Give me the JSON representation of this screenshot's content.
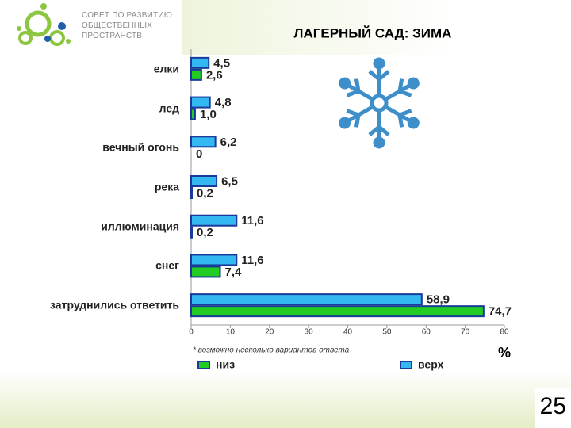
{
  "logo": {
    "lines": [
      "СОВЕТ ПО РАЗВИТИЮ",
      "ОБЩЕСТВЕННЫХ",
      "ПРОСТРАНСТВ"
    ]
  },
  "page_number": "25",
  "chart_data": {
    "type": "bar",
    "orientation": "horizontal",
    "title": "ЛАГЕРНЫЙ САД: ЗИМА",
    "categories": [
      "елки",
      "лед",
      "вечный огонь",
      "река",
      "иллюминация",
      "снег",
      "затруднились ответить"
    ],
    "series": [
      {
        "name": "верх",
        "color": "#33b8f2",
        "values": [
          4.5,
          4.8,
          6.2,
          6.5,
          11.6,
          11.6,
          58.9
        ],
        "value_labels": [
          "4,5",
          "4,8",
          "6,2",
          "6,5",
          "11,6",
          "11,6",
          "58,9"
        ]
      },
      {
        "name": "низ",
        "color": "#22cc22",
        "values": [
          2.6,
          1.0,
          0,
          0.2,
          0.2,
          7.4,
          74.7
        ],
        "value_labels": [
          "2,6",
          "1,0",
          "0",
          "0,2",
          "0,2",
          "7,4",
          "74,7"
        ]
      }
    ],
    "xlim": [
      0,
      80
    ],
    "xticks": [
      0,
      10,
      20,
      30,
      40,
      50,
      60,
      70,
      80
    ],
    "x_unit": "%",
    "footnote": "* возможно несколько вариантов ответа",
    "legend": "bottom"
  }
}
